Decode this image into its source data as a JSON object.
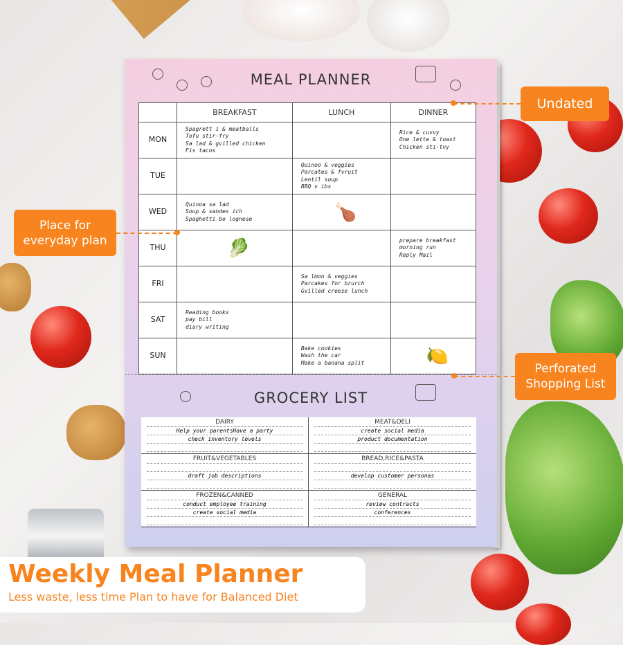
{
  "meal_planner": {
    "title": "MEAL PLANNER",
    "columns": [
      "",
      "BREAKFAST",
      "LUNCH",
      "DINNER"
    ],
    "rows": [
      {
        "day": "MON",
        "breakfast": [
          "Spagrett i & meatballs",
          "Tofu stir-fry",
          "Sa lad & gvilled chicken",
          "Fis tacos"
        ],
        "lunch": [],
        "dinner": [
          "Rice & cuvvy",
          "One lette & toast",
          "Chicken sti-tvy"
        ]
      },
      {
        "day": "TUE",
        "breakfast": [],
        "lunch": [
          "Quinoo & veggies",
          "Parcates & fvruit",
          "Lentil soup",
          "BBQ v ibs"
        ],
        "dinner": []
      },
      {
        "day": "WED",
        "breakfast": [
          "Quinoa sa lad",
          "Soup & sandes ich",
          "Spaghetti bo lognese"
        ],
        "lunch": [
          "[roast-chicken]"
        ],
        "dinner": []
      },
      {
        "day": "THU",
        "breakfast": [
          "[bok-choy]"
        ],
        "lunch": [],
        "dinner": [
          "prepare breakfast",
          "morning run",
          "Reply Mail"
        ]
      },
      {
        "day": "FRI",
        "breakfast": [],
        "lunch": [
          "Sa lmon & veggies",
          "Parcakes for brurch",
          "Gvilled creese lunch"
        ],
        "dinner": []
      },
      {
        "day": "SAT",
        "breakfast": [
          "Reading books",
          "pay bill",
          "diary writing"
        ],
        "lunch": [],
        "dinner": []
      },
      {
        "day": "SUN",
        "breakfast": [],
        "lunch": [
          "Bake cookies",
          "Wash the car",
          "Make a banana split"
        ],
        "dinner": [
          "[lime]"
        ]
      }
    ]
  },
  "grocery_list": {
    "title": "GROCERY LIST",
    "sections": [
      {
        "name": "DAIRY",
        "items": [
          "Help your parentsHave a party",
          "check inventory levels"
        ]
      },
      {
        "name": "MEAT&DELI",
        "items": [
          "create social media",
          "product documentation"
        ]
      },
      {
        "name": "FRUIT&VEGETABLES",
        "items": [
          "",
          "draft job descriptions"
        ]
      },
      {
        "name": "BREAD,RICE&PASTA",
        "items": [
          "",
          "develop customer personas"
        ]
      },
      {
        "name": "FROZEN&CANNED",
        "items": [
          "conduct employee training",
          "create social media"
        ]
      },
      {
        "name": "GENERAL",
        "items": [
          "review contracts",
          "conferences"
        ]
      }
    ]
  },
  "callouts": {
    "undated": "Undated",
    "everyday": "Place for everyday plan",
    "shopping": "Perforated Shopping List"
  },
  "banner": {
    "title": "Weekly Meal Planner",
    "subtitle": "Less waste, less time Plan to have for Balanced Diet"
  },
  "colors": {
    "accent": "#f7841f",
    "pad_top": "#f5cfe0",
    "pad_bottom": "#cfd0ef"
  }
}
